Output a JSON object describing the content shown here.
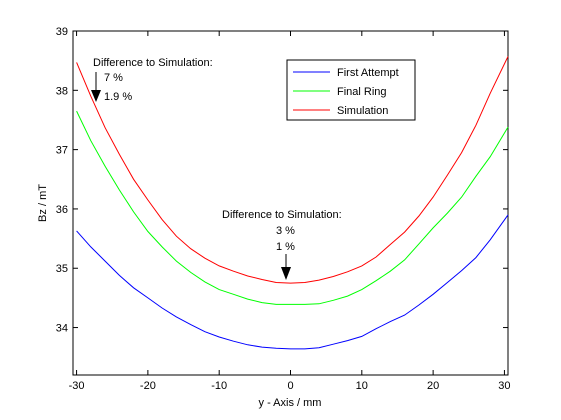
{
  "chart_data": {
    "type": "line",
    "xlabel": "y - Axis / mm",
    "ylabel": "Bz / mT",
    "xlim": [
      -30.5,
      30.5
    ],
    "ylim": [
      33.2,
      39
    ],
    "xticks": [
      -30,
      -20,
      -10,
      0,
      10,
      20,
      30
    ],
    "yticks": [
      34,
      35,
      36,
      37,
      38,
      39
    ],
    "grid": false,
    "legend_placement": "top-right",
    "series": [
      {
        "name": "First Attempt",
        "color": "#0000ff",
        "x": [
          -30,
          -28,
          -26,
          -24,
          -22,
          -20,
          -18,
          -16,
          -14,
          -12,
          -10,
          -8,
          -6,
          -4,
          -2,
          0,
          2,
          4,
          6,
          8,
          10,
          12,
          14,
          16,
          18,
          20,
          22,
          24,
          26,
          28,
          30.5
        ],
        "y": [
          35.63,
          35.36,
          35.12,
          34.88,
          34.67,
          34.5,
          34.33,
          34.18,
          34.05,
          33.93,
          33.84,
          33.77,
          33.71,
          33.67,
          33.65,
          33.64,
          33.64,
          33.66,
          33.72,
          33.78,
          33.85,
          33.98,
          34.1,
          34.21,
          34.38,
          34.56,
          34.76,
          34.96,
          35.18,
          35.48,
          35.9
        ]
      },
      {
        "name": "Final Ring",
        "color": "#00ff00",
        "x": [
          -30,
          -28,
          -26,
          -24,
          -22,
          -20,
          -18,
          -16,
          -14,
          -12,
          -10,
          -8,
          -6,
          -4,
          -2,
          0,
          2,
          4,
          6,
          8,
          10,
          12,
          14,
          16,
          18,
          20,
          22,
          24,
          26,
          28,
          30.5
        ],
        "y": [
          37.65,
          37.15,
          36.72,
          36.32,
          35.95,
          35.62,
          35.36,
          35.12,
          34.93,
          34.77,
          34.64,
          34.56,
          34.48,
          34.42,
          34.39,
          34.39,
          34.39,
          34.4,
          34.46,
          34.53,
          34.64,
          34.79,
          34.95,
          35.14,
          35.41,
          35.68,
          35.93,
          36.2,
          36.55,
          36.88,
          37.38
        ]
      },
      {
        "name": "Simulation",
        "color": "#ff0000",
        "x": [
          -30,
          -28,
          -26,
          -24,
          -22,
          -20,
          -18,
          -16,
          -14,
          -12,
          -10,
          -8,
          -6,
          -4,
          -2,
          0,
          2,
          4,
          6,
          8,
          10,
          12,
          14,
          16,
          18,
          20,
          22,
          24,
          26,
          28,
          30.5
        ],
        "y": [
          38.47,
          37.9,
          37.37,
          36.92,
          36.5,
          36.15,
          35.82,
          35.54,
          35.33,
          35.17,
          35.04,
          34.95,
          34.87,
          34.81,
          34.76,
          34.75,
          34.76,
          34.8,
          34.86,
          34.94,
          35.04,
          35.19,
          35.4,
          35.61,
          35.88,
          36.2,
          36.57,
          36.95,
          37.41,
          37.95,
          38.57
        ]
      }
    ],
    "annotations": [
      {
        "title": "Difference to Simulation:",
        "values": [
          {
            "text": "7 %",
            "color": "#000080"
          },
          {
            "text": "1.9 %",
            "color": "#00c000"
          }
        ],
        "arrow_x": -27,
        "arrow_y": 37.85
      },
      {
        "title": "Difference to Simulation:",
        "values": [
          {
            "text": "3 %",
            "color": "#000000"
          },
          {
            "text": "1 %",
            "color": "#00c000"
          }
        ],
        "arrow_x": -0.5,
        "arrow_y": 34.75
      }
    ]
  }
}
